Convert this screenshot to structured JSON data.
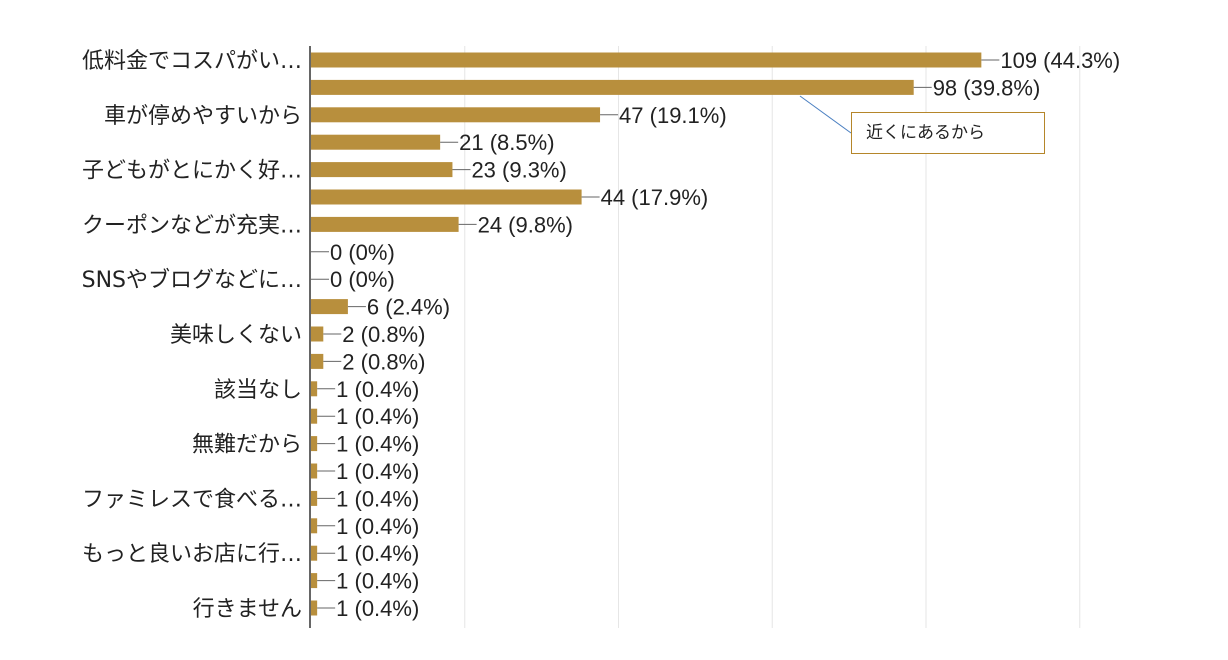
{
  "chart_data": {
    "type": "bar",
    "orientation": "horizontal",
    "bar_color": "#b88f3d",
    "grid": true,
    "xlim": [
      0,
      125
    ],
    "bars": [
      {
        "category": "低料金でコスパがい…",
        "value": 109,
        "label": "109 (44.3%)"
      },
      {
        "category": "",
        "value": 98,
        "label": "98 (39.8%)"
      },
      {
        "category": "車が停めやすいから",
        "value": 47,
        "label": "47 (19.1%)"
      },
      {
        "category": "",
        "value": 21,
        "label": "21 (8.5%)"
      },
      {
        "category": "子どもがとにかく好…",
        "value": 23,
        "label": "23 (9.3%)"
      },
      {
        "category": "",
        "value": 44,
        "label": "44 (17.9%)"
      },
      {
        "category": "クーポンなどが充実…",
        "value": 24,
        "label": "24 (9.8%)"
      },
      {
        "category": "",
        "value": 0,
        "label": "0 (0%)"
      },
      {
        "category": "SNSやブログなどに…",
        "value": 0,
        "label": "0 (0%)"
      },
      {
        "category": "",
        "value": 6,
        "label": "6 (2.4%)"
      },
      {
        "category": "美味しくない",
        "value": 2,
        "label": "2 (0.8%)"
      },
      {
        "category": "",
        "value": 2,
        "label": "2 (0.8%)"
      },
      {
        "category": "該当なし",
        "value": 1,
        "label": "1 (0.4%)"
      },
      {
        "category": "",
        "value": 1,
        "label": "1 (0.4%)"
      },
      {
        "category": "無難だから",
        "value": 1,
        "label": "1 (0.4%)"
      },
      {
        "category": "",
        "value": 1,
        "label": "1 (0.4%)"
      },
      {
        "category": "ファミレスで食べる…",
        "value": 1,
        "label": "1 (0.4%)"
      },
      {
        "category": "",
        "value": 1,
        "label": "1 (0.4%)"
      },
      {
        "category": "もっと良いお店に行…",
        "value": 1,
        "label": "1 (0.4%)"
      },
      {
        "category": "",
        "value": 1,
        "label": "1 (0.4%)"
      },
      {
        "category": "行きません",
        "value": 1,
        "label": "1 (0.4%)"
      }
    ],
    "annotation": {
      "text": "近くにあるから",
      "points_to_bar": 1
    }
  }
}
